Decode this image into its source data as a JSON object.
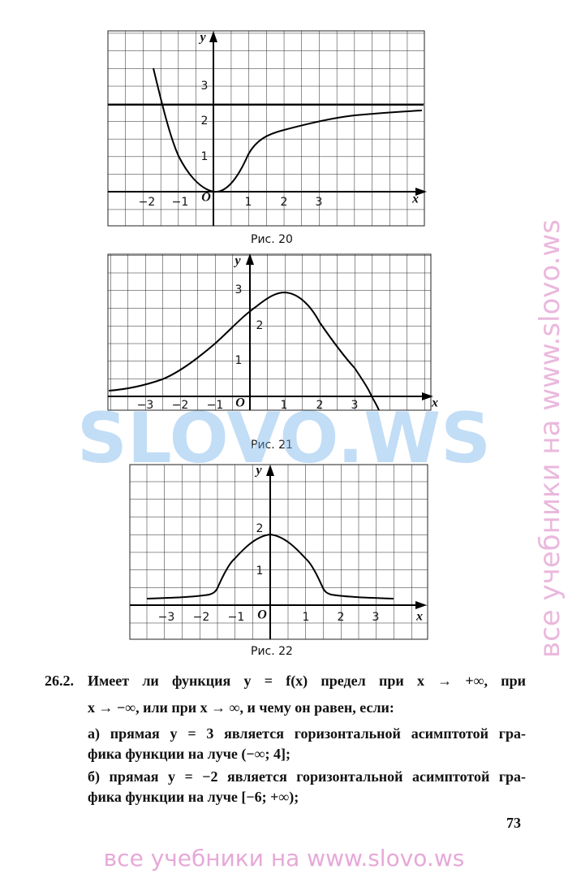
{
  "figures": [
    {
      "caption": "Рис. 20",
      "axis_x": "x",
      "axis_y": "y",
      "origin": "O",
      "x_ticks": [
        "−2",
        "−1",
        "1",
        "2",
        "3"
      ],
      "y_ticks": [
        "1",
        "2",
        "3"
      ]
    },
    {
      "caption": "Рис. 21",
      "axis_x": "x",
      "axis_y": "y",
      "origin": "O",
      "x_ticks": [
        "−3",
        "−2",
        "−1",
        "1",
        "2",
        "3"
      ],
      "y_ticks": [
        "1",
        "2",
        "3"
      ]
    },
    {
      "caption": "Рис. 22",
      "axis_x": "x",
      "axis_y": "y",
      "origin": "O",
      "x_ticks": [
        "−3",
        "−2",
        "−1",
        "1",
        "2",
        "3"
      ],
      "y_ticks": [
        "1",
        "2"
      ]
    }
  ],
  "problem": {
    "number": "26.2.",
    "lines": [
      "Имеет ли функция y = f(x) предел при x → +∞, при",
      "x → −∞, или при x → ∞, и чему он равен, если:",
      "а) прямая y = 3 является горизонтальной асимптотой гра-",
      "фика функции на луче (−∞; 4];",
      "б) прямая y = −2 является горизонтальной асимптотой гра-",
      "фика функции на луче [−6; +∞);"
    ]
  },
  "page_number": "73",
  "watermarks": {
    "center": "SLOVO.WS",
    "side": "все учебники на www.slovo.ws",
    "footer": "все учебники на www.slovo.ws"
  }
}
